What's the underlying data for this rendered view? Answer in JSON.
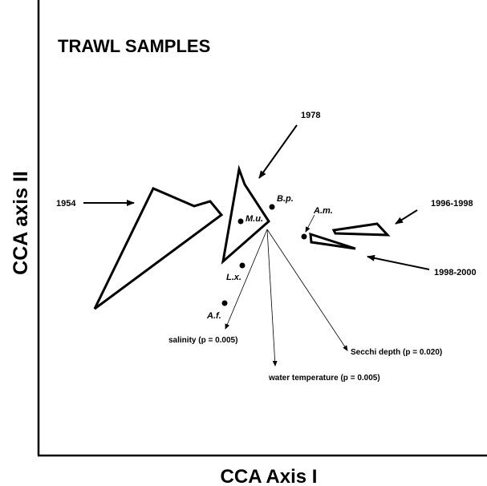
{
  "title": "TRAWL SAMPLES",
  "axes": {
    "x_label": "CCA Axis I",
    "y_label": "CCA axis II"
  },
  "groups": [
    "1954",
    "1978",
    "1996-1998",
    "1998-2000"
  ],
  "species": [
    "M.u.",
    "B.p.",
    "L.x.",
    "A.f.",
    "A.m."
  ],
  "variables": [
    "salinity (p = 0.005)",
    "water temperature (p = 0.005)",
    "Secchi depth (p = 0.020)"
  ]
}
